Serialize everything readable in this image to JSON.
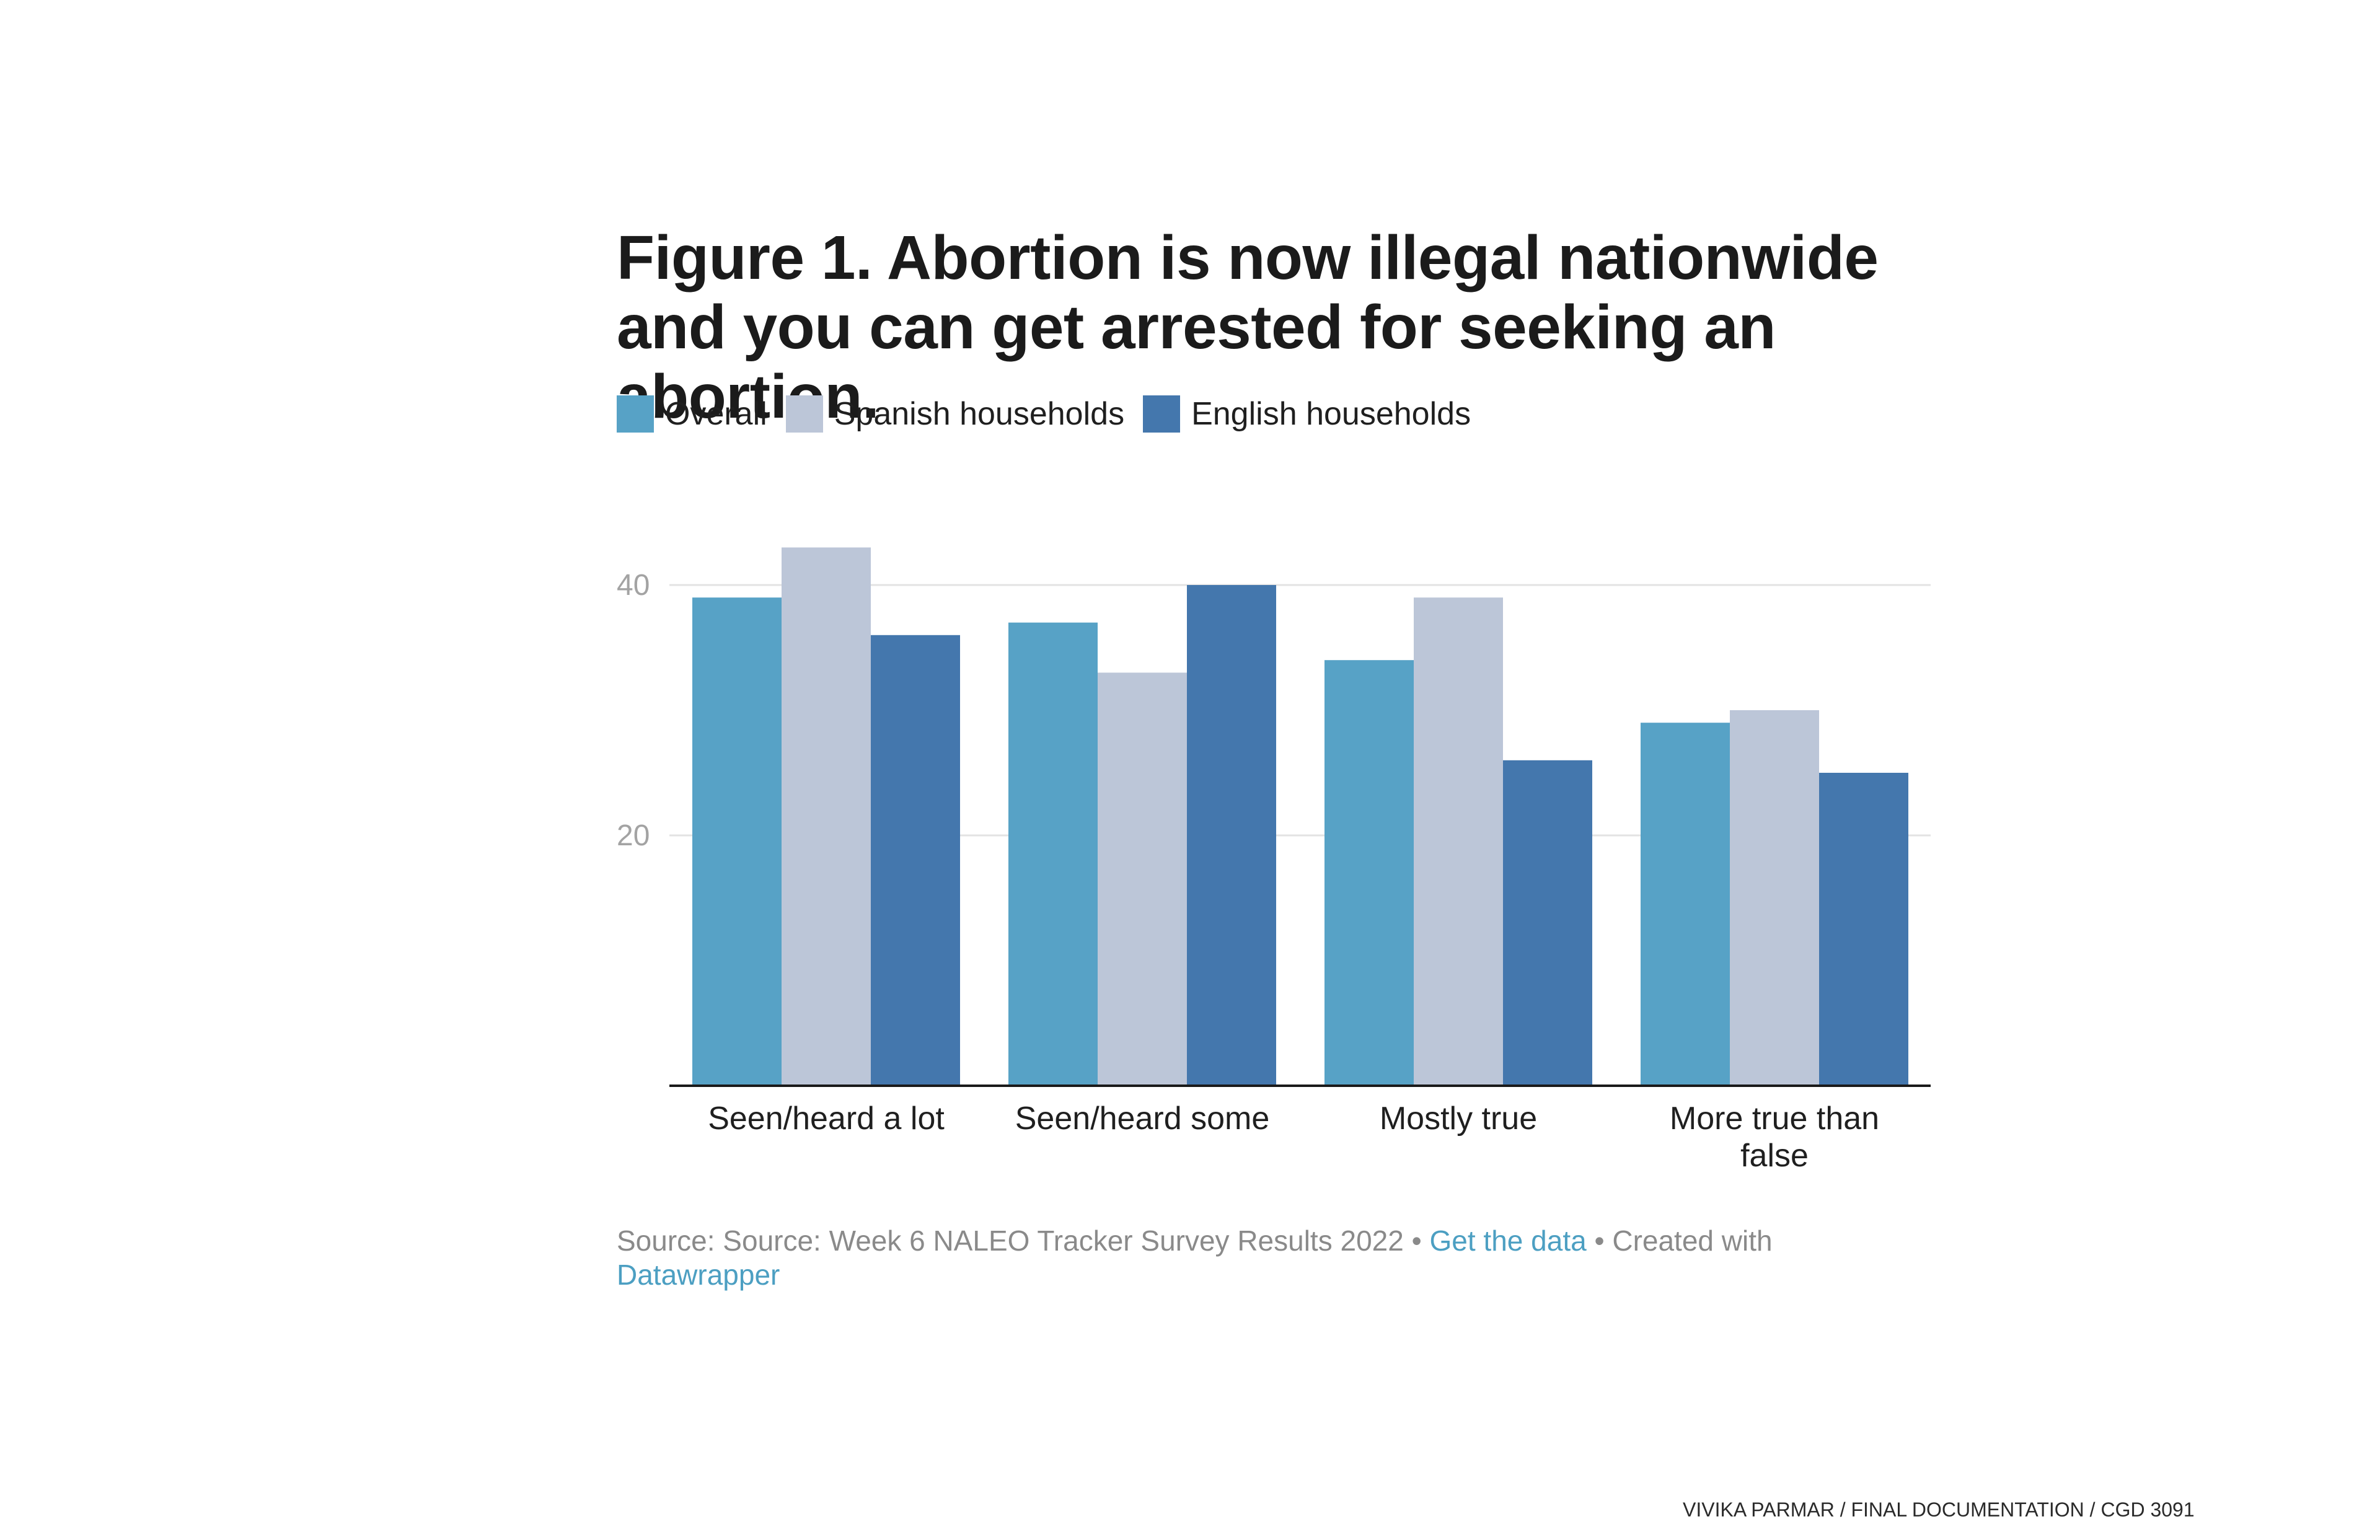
{
  "colors": {
    "overall": "#57a2c6",
    "spanish": "#bcc6d8",
    "english": "#4477ad",
    "grid": "#e3e3e3",
    "axis": "#1a1a1a",
    "tick_label": "#a3a3a3",
    "link": "#4c9fc2"
  },
  "chart_data": {
    "type": "bar",
    "title": "Figure 1. Abortion is now illegal nationwide and you can get arrested for seeking an abortion.",
    "categories": [
      [
        "Seen/heard a lot"
      ],
      [
        "Seen/heard some"
      ],
      [
        "Mostly true"
      ],
      [
        "More true than",
        "false"
      ]
    ],
    "series": [
      {
        "name": "Overall",
        "color": "#57a2c6",
        "values": [
          39,
          37,
          34,
          29
        ]
      },
      {
        "name": "Spanish households",
        "color": "#bcc6d8",
        "values": [
          43,
          33,
          39,
          30
        ]
      },
      {
        "name": "English households",
        "color": "#4477ad",
        "values": [
          36,
          40,
          26,
          25
        ]
      }
    ],
    "yticks": [
      {
        "value": 20,
        "label": "20"
      },
      {
        "value": 40,
        "label": "40"
      }
    ],
    "ylim": [
      0,
      44
    ],
    "grid": true,
    "legend_position": "top-left"
  },
  "source": {
    "prefix": "Source: Source: Week 6 NALEO Tracker Survey Results 2022 • ",
    "get_data": "Get the data",
    "middle": " • Created with",
    "tool": "Datawrapper"
  },
  "footer": {
    "credit": "VIVIKA PARMAR / FINAL DOCUMENTATION / CGD 3091"
  }
}
